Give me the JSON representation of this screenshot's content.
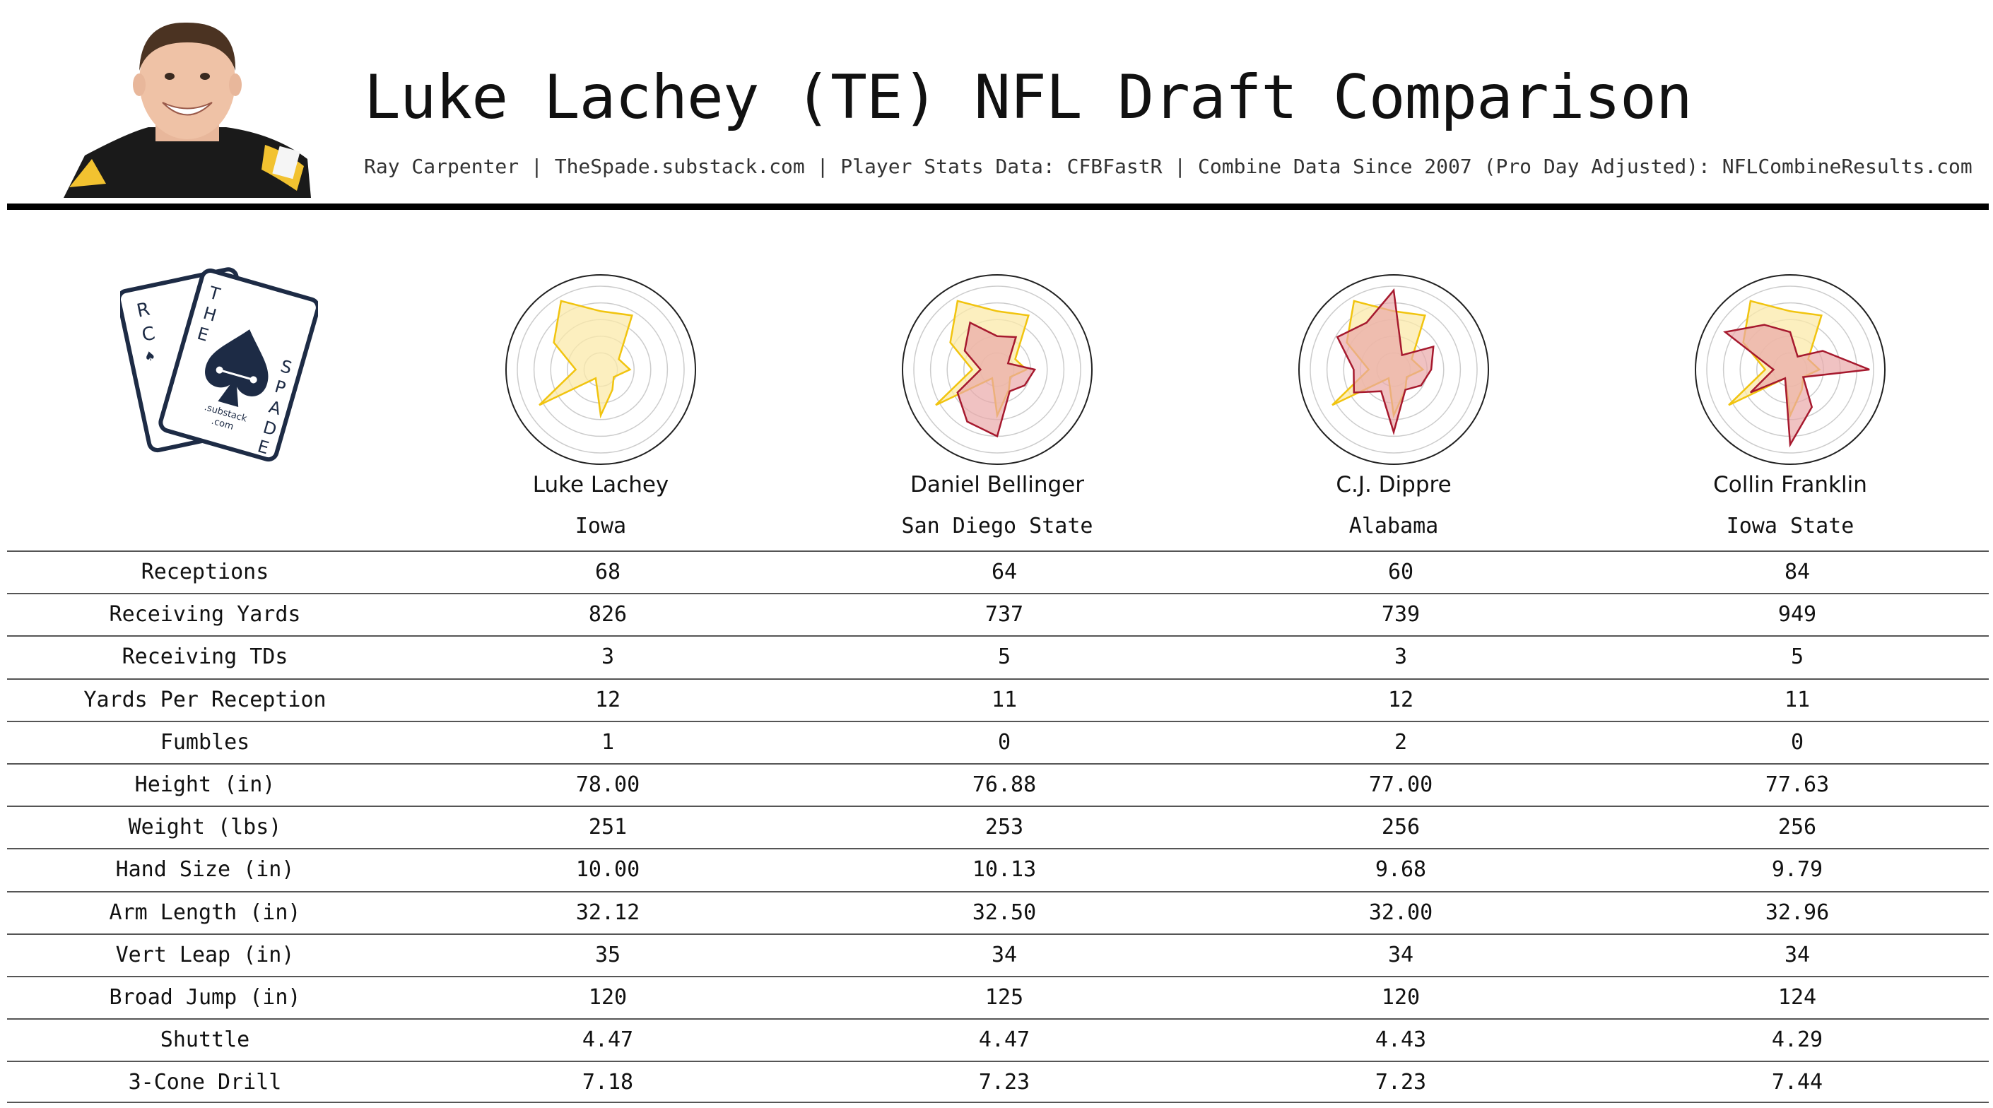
{
  "header": {
    "title": "Luke Lachey (TE) NFL Draft Comparison",
    "subtitle": "Ray Carpenter | TheSpade.substack.com | Player Stats Data: CFBFastR | Combine Data Since 2007 (Pro Day Adjusted): NFLCombineResults.com"
  },
  "logo": {
    "card_back_letters": [
      "R",
      "C"
    ],
    "card_front_letters": [
      "T",
      "H",
      "E",
      "S",
      "P",
      "A",
      "D",
      "E"
    ],
    "card_caption": [
      ".substack",
      ".com"
    ]
  },
  "colors": {
    "primary_fill": "#fbe9a9",
    "primary_stroke": "#f1c40f",
    "comp_fill": "#e9a8a8",
    "comp_stroke": "#a6192e",
    "ring": "#cccccc"
  },
  "chart_data": {
    "type": "table",
    "columns": [
      "Luke Lachey",
      "Daniel Bellinger",
      "C.J. Dippre",
      "Collin Franklin"
    ],
    "schools": [
      "Iowa",
      "San Diego State",
      "Alabama",
      "Iowa State"
    ],
    "rows": [
      {
        "label": "Receptions",
        "values": [
          "68",
          "64",
          "60",
          "84"
        ]
      },
      {
        "label": "Receiving Yards",
        "values": [
          "826",
          "737",
          "739",
          "949"
        ]
      },
      {
        "label": "Receiving TDs",
        "values": [
          "3",
          "5",
          "3",
          "5"
        ]
      },
      {
        "label": "Yards Per Reception",
        "values": [
          "12",
          "11",
          "12",
          "11"
        ]
      },
      {
        "label": "Fumbles",
        "values": [
          "1",
          "0",
          "2",
          "0"
        ]
      },
      {
        "label": "Height (in)",
        "values": [
          "78.00",
          "76.88",
          "77.00",
          "77.63"
        ]
      },
      {
        "label": "Weight (lbs)",
        "values": [
          "251",
          "253",
          "256",
          "256"
        ]
      },
      {
        "label": "Hand Size (in)",
        "values": [
          "10.00",
          "10.13",
          "9.68",
          "9.79"
        ]
      },
      {
        "label": "Arm Length (in)",
        "values": [
          "32.12",
          "32.50",
          "32.00",
          "32.96"
        ]
      },
      {
        "label": "Vert Leap (in)",
        "values": [
          "35",
          "34",
          "34",
          "34"
        ]
      },
      {
        "label": "Broad Jump (in)",
        "values": [
          "120",
          "125",
          "120",
          "124"
        ]
      },
      {
        "label": "Shuttle",
        "values": [
          "4.47",
          "4.47",
          "4.43",
          "4.29"
        ]
      },
      {
        "label": "3-Cone Drill",
        "values": [
          "7.18",
          "7.23",
          "7.23",
          "7.44"
        ]
      }
    ],
    "radar": {
      "type": "radar",
      "max": 1,
      "players": [
        {
          "name": "Luke Lachey",
          "values": [
            0.7,
            0.75,
            0.25,
            0.35,
            0.18,
            0.28,
            0.55,
            0.12,
            0.85,
            0.3,
            0.65,
            0.95
          ]
        },
        {
          "name": "Daniel Bellinger",
          "values": [
            0.4,
            0.45,
            0.15,
            0.45,
            0.38,
            0.3,
            0.8,
            0.72,
            0.55,
            0.2,
            0.45,
            0.65
          ]
        },
        {
          "name": "C.J. Dippre",
          "values": [
            0.95,
            0.2,
            0.55,
            0.45,
            0.38,
            0.28,
            0.75,
            0.3,
            0.55,
            0.48,
            0.78,
            0.65
          ]
        },
        {
          "name": "Collin Franklin",
          "values": [
            0.45,
            0.18,
            0.45,
            0.95,
            0.18,
            0.52,
            0.9,
            0.12,
            0.55,
            0.2,
            0.9,
            0.62
          ]
        }
      ]
    }
  }
}
